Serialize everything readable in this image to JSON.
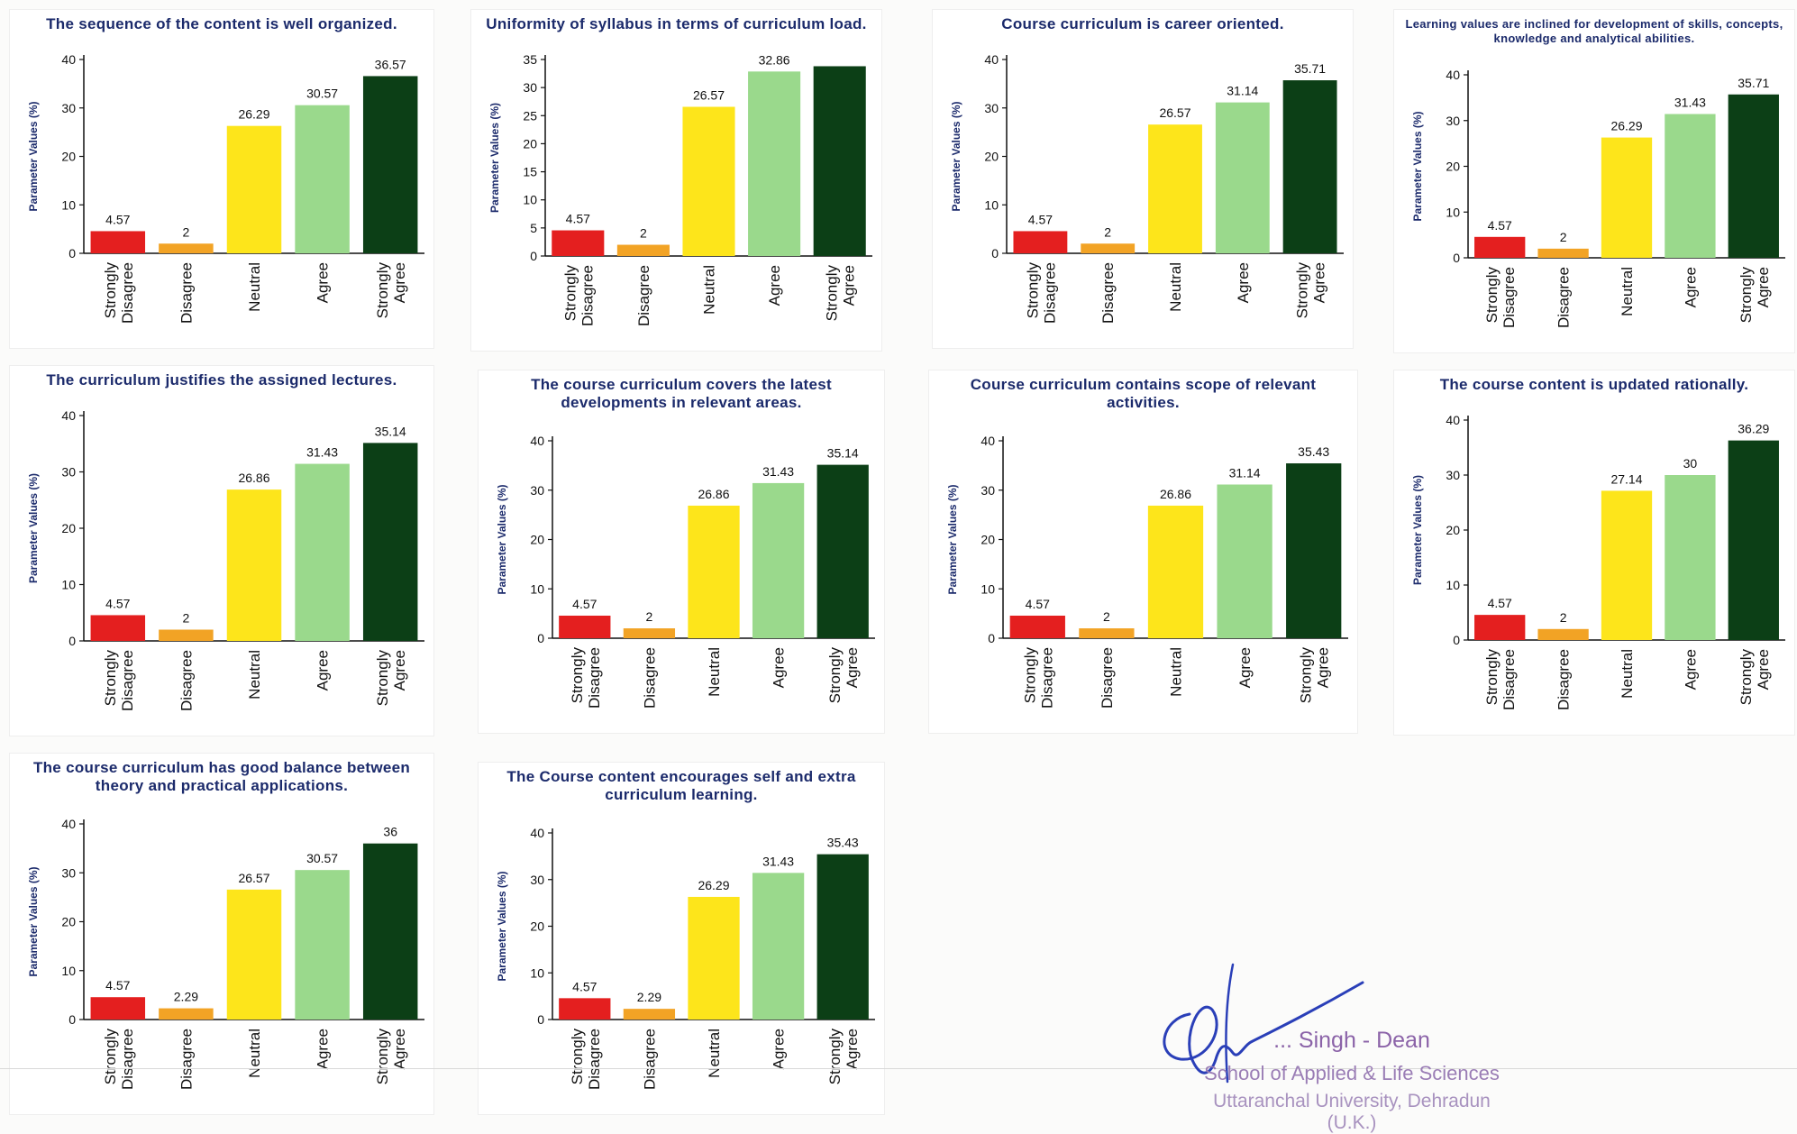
{
  "charts": [
    {
      "title": "The sequence of the content is well organized.",
      "ylabel": "Parameter Values (%)",
      "ticks": [
        0,
        10,
        20,
        30,
        40
      ],
      "ymax": 40,
      "values": [
        4.57,
        2,
        26.29,
        30.57,
        36.57
      ],
      "labels": [
        "4.57",
        "2",
        "26.29",
        "30.57",
        "36.57"
      ]
    },
    {
      "title": "Uniformity of syllabus in terms of curriculum load.",
      "ylabel": "Parameter Values (%)",
      "ticks": [
        0,
        5,
        10,
        15,
        20,
        25,
        30,
        35
      ],
      "ymax": 35,
      "values": [
        4.57,
        2,
        26.57,
        32.86,
        33.8
      ],
      "labels": [
        "4.57",
        "2",
        "26.57",
        "32.86",
        ""
      ]
    },
    {
      "title": "Course curriculum is career oriented.",
      "ylabel": "Parameter Values (%)",
      "ticks": [
        0,
        10,
        20,
        30,
        40
      ],
      "ymax": 40,
      "values": [
        4.57,
        2,
        26.57,
        31.14,
        35.71
      ],
      "labels": [
        "4.57",
        "2",
        "26.57",
        "31.14",
        "35.71"
      ]
    },
    {
      "title": "Learning values are inclined for development of skills, concepts, knowledge and analytical abilities.",
      "ylabel": "Parameter Values (%)",
      "ticks": [
        0,
        10,
        20,
        30,
        40
      ],
      "ymax": 40,
      "values": [
        4.57,
        2,
        26.29,
        31.43,
        35.71
      ],
      "labels": [
        "4.57",
        "2",
        "26.29",
        "31.43",
        "35.71"
      ]
    },
    {
      "title": "The curriculum justifies the assigned lectures.",
      "ylabel": "Parameter Values (%)",
      "ticks": [
        0,
        10,
        20,
        30,
        40
      ],
      "ymax": 40,
      "values": [
        4.57,
        2,
        26.86,
        31.43,
        35.14
      ],
      "labels": [
        "4.57",
        "2",
        "26.86",
        "31.43",
        "35.14"
      ]
    },
    {
      "title": "The course curriculum covers the latest developments in relevant areas.",
      "ylabel": "Parameter Values (%)",
      "ticks": [
        0,
        10,
        20,
        30,
        40
      ],
      "ymax": 40,
      "values": [
        4.57,
        2,
        26.86,
        31.43,
        35.14
      ],
      "labels": [
        "4.57",
        "2",
        "26.86",
        "31.43",
        "35.14"
      ]
    },
    {
      "title": "Course curriculum contains scope of relevant activities.",
      "ylabel": "Parameter Values (%)",
      "ticks": [
        0,
        10,
        20,
        30,
        40
      ],
      "ymax": 40,
      "values": [
        4.57,
        2,
        26.86,
        31.14,
        35.43
      ],
      "labels": [
        "4.57",
        "2",
        "26.86",
        "31.14",
        "35.43"
      ]
    },
    {
      "title": "The course content is updated rationally.",
      "ylabel": "Parameter Values (%)",
      "ticks": [
        0,
        10,
        20,
        30,
        40
      ],
      "ymax": 40,
      "values": [
        4.57,
        2,
        27.14,
        30,
        36.29
      ],
      "labels": [
        "4.57",
        "2",
        "27.14",
        "30",
        "36.29"
      ]
    },
    {
      "title": "The course curriculum has good balance between theory and practical applications.",
      "ylabel": "Parameter Values (%)",
      "ticks": [
        0,
        10,
        20,
        30,
        40
      ],
      "ymax": 40,
      "values": [
        4.57,
        2.29,
        26.57,
        30.57,
        36
      ],
      "labels": [
        "4.57",
        "2.29",
        "26.57",
        "30.57",
        "36"
      ]
    },
    {
      "title": "The Course content encourages self and extra curriculum learning.",
      "ylabel": "Parameter Values (%)",
      "ticks": [
        0,
        10,
        20,
        30,
        40
      ],
      "ymax": 40,
      "values": [
        4.57,
        2.29,
        26.29,
        31.43,
        35.43
      ],
      "labels": [
        "4.57",
        "2.29",
        "26.29",
        "31.43",
        "35.43"
      ]
    }
  ],
  "categories": [
    [
      "Strongly",
      "Disagree"
    ],
    [
      "Disagree"
    ],
    [
      "Neutral"
    ],
    [
      "Agree"
    ],
    [
      "Strongly",
      "Agree"
    ]
  ],
  "bar_colors": [
    "#e41f1f",
    "#f2a325",
    "#fde51b",
    "#9ad98c",
    "#0c3f16"
  ],
  "chart_data": [
    {
      "type": "bar",
      "title": "The sequence of the content is well organized.",
      "ylabel": "Parameter Values (%)",
      "categories": [
        "Strongly Disagree",
        "Disagree",
        "Neutral",
        "Agree",
        "Strongly Agree"
      ],
      "values": [
        4.57,
        2,
        26.29,
        30.57,
        36.57
      ],
      "ylim": [
        0,
        40
      ]
    },
    {
      "type": "bar",
      "title": "Uniformity of syllabus in terms of curriculum load.",
      "ylabel": "Parameter Values (%)",
      "categories": [
        "Strongly Disagree",
        "Disagree",
        "Neutral",
        "Agree",
        "Strongly Agree"
      ],
      "values": [
        4.57,
        2,
        26.57,
        32.86,
        33.8
      ],
      "ylim": [
        0,
        35
      ]
    },
    {
      "type": "bar",
      "title": "Course curriculum is career oriented.",
      "ylabel": "Parameter Values (%)",
      "categories": [
        "Strongly Disagree",
        "Disagree",
        "Neutral",
        "Agree",
        "Strongly Agree"
      ],
      "values": [
        4.57,
        2,
        26.57,
        31.14,
        35.71
      ],
      "ylim": [
        0,
        40
      ]
    },
    {
      "type": "bar",
      "title": "Learning values are inclined for development of skills, concepts, knowledge and analytical abilities.",
      "ylabel": "Parameter Values (%)",
      "categories": [
        "Strongly Disagree",
        "Disagree",
        "Neutral",
        "Agree",
        "Strongly Agree"
      ],
      "values": [
        4.57,
        2,
        26.29,
        31.43,
        35.71
      ],
      "ylim": [
        0,
        40
      ]
    },
    {
      "type": "bar",
      "title": "The curriculum justifies the assigned lectures.",
      "ylabel": "Parameter Values (%)",
      "categories": [
        "Strongly Disagree",
        "Disagree",
        "Neutral",
        "Agree",
        "Strongly Agree"
      ],
      "values": [
        4.57,
        2,
        26.86,
        31.43,
        35.14
      ],
      "ylim": [
        0,
        40
      ]
    },
    {
      "type": "bar",
      "title": "The course curriculum covers the latest developments in relevant areas.",
      "ylabel": "Parameter Values (%)",
      "categories": [
        "Strongly Disagree",
        "Disagree",
        "Neutral",
        "Agree",
        "Strongly Agree"
      ],
      "values": [
        4.57,
        2,
        26.86,
        31.43,
        35.14
      ],
      "ylim": [
        0,
        40
      ]
    },
    {
      "type": "bar",
      "title": "Course curriculum contains scope of relevant activities.",
      "ylabel": "Parameter Values (%)",
      "categories": [
        "Strongly Disagree",
        "Disagree",
        "Neutral",
        "Agree",
        "Strongly Agree"
      ],
      "values": [
        4.57,
        2,
        26.86,
        31.14,
        35.43
      ],
      "ylim": [
        0,
        40
      ]
    },
    {
      "type": "bar",
      "title": "The course content is updated rationally.",
      "ylabel": "Parameter Values (%)",
      "categories": [
        "Strongly Disagree",
        "Disagree",
        "Neutral",
        "Agree",
        "Strongly Agree"
      ],
      "values": [
        4.57,
        2,
        27.14,
        30,
        36.29
      ],
      "ylim": [
        0,
        40
      ]
    },
    {
      "type": "bar",
      "title": "The course curriculum has good balance between theory and practical applications.",
      "ylabel": "Parameter Values (%)",
      "categories": [
        "Strongly Disagree",
        "Disagree",
        "Neutral",
        "Agree",
        "Strongly Agree"
      ],
      "values": [
        4.57,
        2.29,
        26.57,
        30.57,
        36
      ],
      "ylim": [
        0,
        40
      ]
    },
    {
      "type": "bar",
      "title": "The Course content encourages self and extra curriculum learning.",
      "ylabel": "Parameter Values (%)",
      "categories": [
        "Strongly Disagree",
        "Disagree",
        "Neutral",
        "Agree",
        "Strongly Agree"
      ],
      "values": [
        4.57,
        2.29,
        26.29,
        31.43,
        35.43
      ],
      "ylim": [
        0,
        40
      ]
    }
  ],
  "signature": {
    "name": "... Singh - Dean",
    "school": "School of Applied & Life Sciences",
    "university": "Uttaranchal University, Dehradun (U.K.)"
  }
}
